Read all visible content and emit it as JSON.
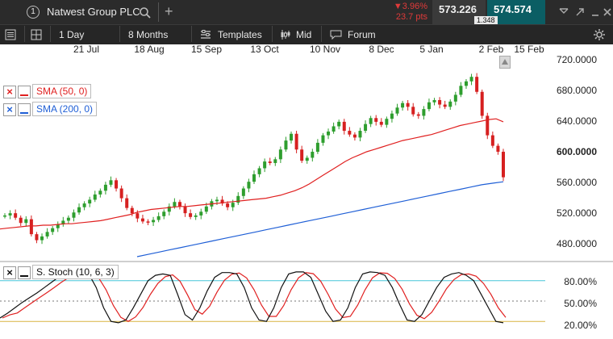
{
  "header": {
    "info_icon_label": "1",
    "instrument": "Natwest Group PLC",
    "change_pct": "▼3.96%",
    "change_pts": "23.7 pts",
    "sell_price": "573.226",
    "buy_price": "574.574",
    "spread": "1.348"
  },
  "toolbar": {
    "interval": "1 Day",
    "range": "8 Months",
    "templates": "Templates",
    "price_type": "Mid",
    "forum": "Forum"
  },
  "date_axis": [
    "21 Jul",
    "18 Aug",
    "15 Sep",
    "13 Oct",
    "10 Nov",
    "8 Dec",
    "5 Jan",
    "2 Feb",
    "15 Feb"
  ],
  "price_axis": [
    "720.0000",
    "680.0000",
    "640.0000",
    "600.0000",
    "560.0000",
    "520.0000",
    "480.0000"
  ],
  "indicators": {
    "sma50": {
      "label": "SMA (50, 0)",
      "color": "#e02020"
    },
    "sma200": {
      "label": "SMA (200, 0)",
      "color": "#1f5fd6"
    }
  },
  "oscillator": {
    "label": "S. Stoch (10, 6, 3)",
    "levels": [
      "80.00%",
      "50.00%",
      "20.00%"
    ]
  },
  "colors": {
    "up": "#2e9e2e",
    "down": "#d62020",
    "sell_bg": "#3a3a3a",
    "buy_bg": "#0b5e64",
    "change": "#e03a3a"
  },
  "chart_data": {
    "type": "candlestick",
    "ylim": [
      460,
      725
    ],
    "series": [
      {
        "name": "price",
        "values": [
          515,
          518,
          512,
          505,
          510,
          490,
          482,
          487,
          493,
          498,
          503,
          508,
          512,
          519,
          526,
          531,
          536,
          543,
          548,
          556,
          562,
          551,
          538,
          525,
          518,
          511,
          507,
          506,
          509,
          514,
          520,
          527,
          533,
          527,
          518,
          513,
          515,
          520,
          527,
          534,
          536,
          531,
          526,
          532,
          541,
          551,
          560,
          570,
          578,
          587,
          585,
          590,
          603,
          615,
          624,
          603,
          588,
          592,
          600,
          612,
          622,
          627,
          634,
          640,
          628,
          623,
          619,
          628,
          637,
          645,
          640,
          636,
          644,
          651,
          659,
          665,
          660,
          650,
          648,
          657,
          666,
          669,
          663,
          660,
          667,
          676,
          688,
          694,
          700,
          680,
          648,
          622,
          608,
          600,
          566
        ]
      },
      {
        "name": "SMA (50, 0)",
        "values": [
          497,
          498,
          499,
          500,
          501,
          501,
          502,
          502,
          503,
          504,
          504,
          505,
          506,
          507,
          508,
          510,
          512,
          514,
          516,
          519,
          521,
          523,
          524,
          525,
          526,
          527,
          527,
          528,
          529,
          530,
          531,
          532,
          533,
          534,
          535,
          536,
          537,
          538,
          540,
          542,
          545,
          548,
          552,
          557,
          563,
          569,
          575,
          581,
          587,
          592,
          596,
          600,
          603,
          606,
          609,
          612,
          615,
          617,
          619,
          621,
          623,
          626,
          629,
          632,
          635,
          637,
          639,
          641,
          643,
          644,
          640
        ]
      },
      {
        "name": "SMA (200, 0)",
        "values": [
          460,
          463,
          466,
          469,
          472,
          475,
          478,
          481,
          484,
          487,
          490,
          493,
          496,
          499,
          502,
          505,
          508,
          511,
          514,
          517,
          520,
          523,
          526,
          529,
          532,
          535,
          538,
          541,
          544,
          547,
          550,
          553,
          556,
          558,
          560
        ]
      },
      {
        "name": "S. Stoch %K",
        "values": [
          25,
          32,
          40,
          48,
          55,
          62,
          70,
          78,
          86,
          91,
          92,
          93,
          90,
          70,
          40,
          20,
          18,
          22,
          40,
          60,
          80,
          88,
          90,
          88,
          60,
          30,
          22,
          40,
          65,
          85,
          92,
          92,
          90,
          70,
          40,
          22,
          20,
          40,
          70,
          90,
          93,
          93,
          85,
          60,
          35,
          20,
          22,
          40,
          70,
          90,
          93,
          92,
          88,
          70,
          45,
          22,
          20,
          30,
          50,
          70,
          85,
          90,
          92,
          88,
          80,
          60,
          40,
          20,
          18
        ]
      }
    ]
  }
}
